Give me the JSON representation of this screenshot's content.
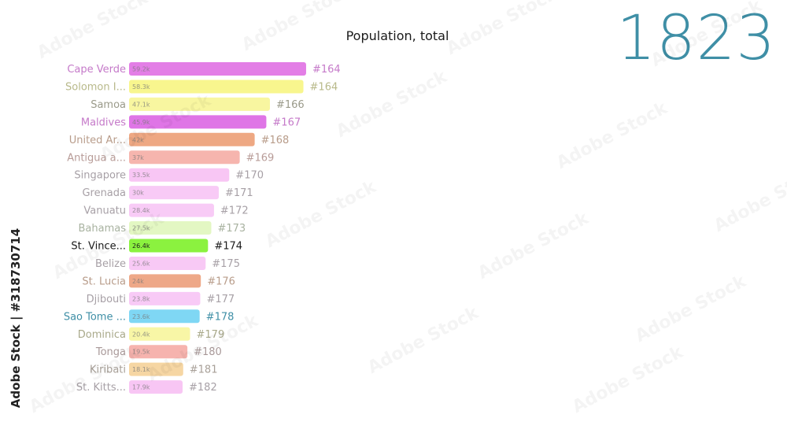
{
  "title": "Population, total",
  "year": "1823",
  "watermark": "Adobe Stock | #318730714",
  "watermark_brand": "Adobe Stock",
  "chart_data": {
    "type": "bar",
    "orientation": "horizontal",
    "title": "Population, total",
    "categories": [
      "Cape Verde",
      "Solomon I...",
      "Samoa",
      "Maldives",
      "United Ar...",
      "Antigua a...",
      "Singapore",
      "Grenada",
      "Vanuatu",
      "Bahamas",
      "St. Vince...",
      "Belize",
      "St. Lucia",
      "Djibouti",
      "Sao Tome ...",
      "Dominica",
      "Tonga",
      "Kiribati",
      "St. Kitts..."
    ],
    "values": [
      59.2,
      58.3,
      47.1,
      45.9,
      42.0,
      37.0,
      33.5,
      30.0,
      28.4,
      27.5,
      26.4,
      25.6,
      24.0,
      23.8,
      23.6,
      20.4,
      19.5,
      18.1,
      17.9
    ],
    "value_labels": [
      "59.2k",
      "58.3k",
      "47.1k",
      "45.9k",
      "42k",
      "37k",
      "33.5k",
      "30k",
      "28.4k",
      "27.5k",
      "26.4k",
      "25.6k",
      "24k",
      "23.8k",
      "23.6k",
      "20.4k",
      "19.5k",
      "18.1k",
      "17.9k"
    ],
    "ranks": [
      "#164",
      "#164",
      "#166",
      "#167",
      "#168",
      "#169",
      "#170",
      "#171",
      "#172",
      "#173",
      "#174",
      "#175",
      "#176",
      "#177",
      "#178",
      "#179",
      "#180",
      "#181",
      "#182"
    ],
    "colors": [
      "#e37ee6",
      "#f8f68e",
      "#f8f6a0",
      "#df75e6",
      "#eea883",
      "#f6b5ae",
      "#f8c6f4",
      "#f8caf6",
      "#f8cbf6",
      "#e3f7c3",
      "#8bf23f",
      "#f8c9f5",
      "#eea888",
      "#f8caf6",
      "#7fd7f4",
      "#f8f6a6",
      "#f6b3ae",
      "#f6d6a3",
      "#f8c6f4"
    ],
    "label_colors": [
      "#c57ac9",
      "#b8b98a",
      "#9a9a8a",
      "#c57ac9",
      "#b89c8a",
      "#b89c98",
      "#a7a0a6",
      "#a7a0a6",
      "#a7a0a6",
      "#a8b2a0",
      "#1b1b1b",
      "#a7a0a6",
      "#b89c8a",
      "#a7a0a6",
      "#3f8fa6",
      "#a9a98a",
      "#a89898",
      "#a8a098",
      "#a7a0a6"
    ],
    "highlight_index": 10,
    "xlim": [
      0,
      60
    ]
  }
}
